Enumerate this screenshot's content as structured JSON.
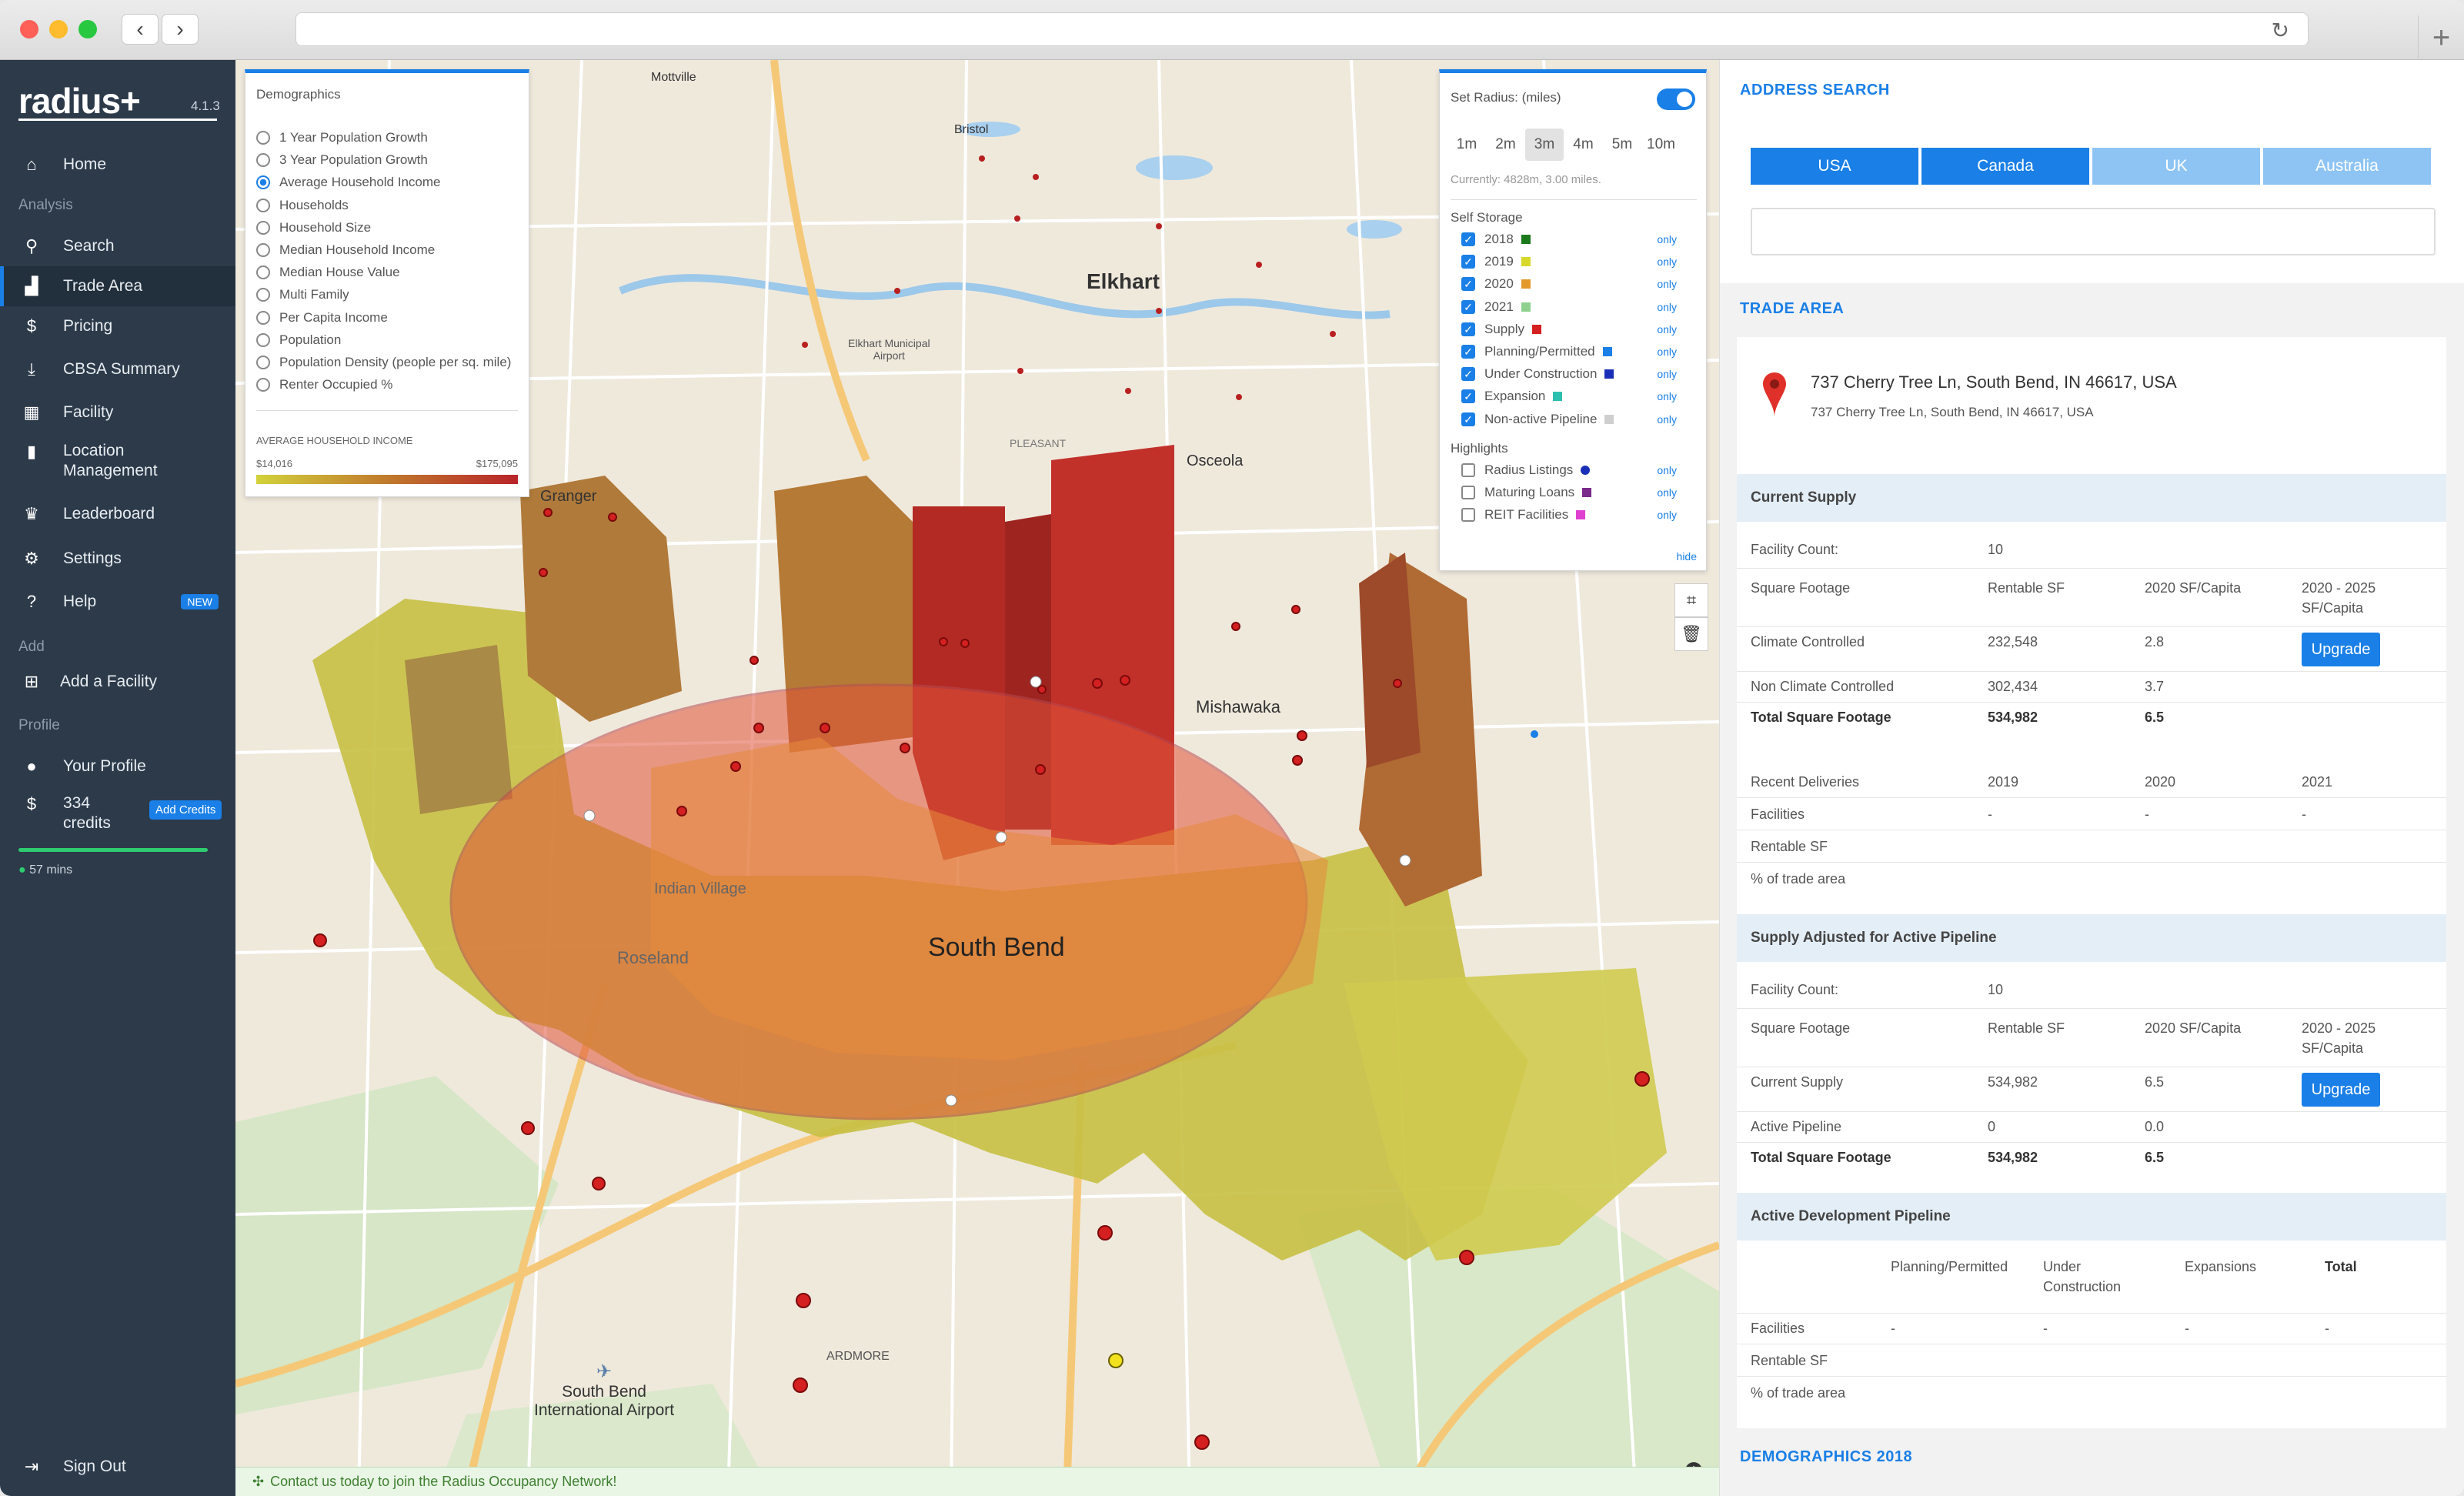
{
  "app": {
    "name": "radius+",
    "version": "4.1.3"
  },
  "sidebar": {
    "sections": {
      "analysis": "Analysis",
      "add": "Add",
      "profile": "Profile"
    },
    "items": [
      {
        "id": "home",
        "label": "Home",
        "icon": "home-icon"
      },
      {
        "id": "search",
        "label": "Search",
        "icon": "search-icon"
      },
      {
        "id": "trade-area",
        "label": "Trade Area",
        "icon": "area-chart-icon",
        "active": true
      },
      {
        "id": "pricing",
        "label": "Pricing",
        "icon": "dollar-icon"
      },
      {
        "id": "cbsa",
        "label": "CBSA Summary",
        "icon": "download-icon"
      },
      {
        "id": "facility",
        "label": "Facility",
        "icon": "building-icon"
      },
      {
        "id": "location",
        "label": "Location",
        "label2": "Management",
        "icon": "bookmark-icon"
      },
      {
        "id": "leaderboard",
        "label": "Leaderboard",
        "icon": "trophy-icon"
      },
      {
        "id": "settings",
        "label": "Settings",
        "icon": "gear-icon"
      },
      {
        "id": "help",
        "label": "Help",
        "badge": "NEW",
        "icon": "help-icon"
      },
      {
        "id": "add-facility",
        "label": "Add a Facility",
        "icon": "plus-square-icon"
      },
      {
        "id": "profile",
        "label": "Your Profile",
        "icon": "user-icon"
      },
      {
        "id": "credits",
        "label": "334",
        "label2": "credits",
        "button": "Add Credits",
        "icon": "coin-icon"
      },
      {
        "id": "signout",
        "label": "Sign Out",
        "icon": "signout-icon"
      }
    ],
    "session": "57 mins"
  },
  "demographics": {
    "title": "Demographics",
    "options": [
      "1 Year Population Growth",
      "3 Year Population Growth",
      "Average Household Income",
      "Households",
      "Household Size",
      "Median Household Income",
      "Median House Value",
      "Multi Family",
      "Per Capita Income",
      "Population",
      "Population Density (people per sq. mile)",
      "Renter Occupied %"
    ],
    "selected_index": 2,
    "legend_title": "AVERAGE HOUSEHOLD INCOME",
    "legend_min": "$14,016",
    "legend_max": "$175,095"
  },
  "radius": {
    "title": "Set Radius: (miles)",
    "options": [
      "1m",
      "2m",
      "3m",
      "4m",
      "5m",
      "10m"
    ],
    "selected": "3m",
    "current": "Currently: 4828m, 3.00 miles.",
    "self_storage_title": "Self Storage",
    "self_storage": [
      {
        "label": "2018",
        "color": "#1c7a1c",
        "checked": true
      },
      {
        "label": "2019",
        "color": "#d8d82a",
        "checked": true
      },
      {
        "label": "2020",
        "color": "#e39a2a",
        "checked": true
      },
      {
        "label": "2021",
        "color": "#8fd08f",
        "checked": true
      },
      {
        "label": "Supply",
        "color": "#d42020",
        "checked": true
      },
      {
        "label": "Planning/Permitted",
        "color": "#1a7fe6",
        "checked": true
      },
      {
        "label": "Under Construction",
        "color": "#1a2fb8",
        "checked": true
      },
      {
        "label": "Expansion",
        "color": "#2bbfb0",
        "checked": true
      },
      {
        "label": "Non-active Pipeline",
        "color": "#cfcfcf",
        "checked": true
      }
    ],
    "highlights_title": "Highlights",
    "highlights": [
      {
        "label": "Radius Listings",
        "color": "#1a2fb8"
      },
      {
        "label": "Maturing Loans",
        "color": "#7a2a8a"
      },
      {
        "label": "REIT Facilities",
        "color": "#e040d0"
      }
    ],
    "only_label": "only",
    "hide_label": "hide"
  },
  "map": {
    "labels": {
      "elkhart": "Elkhart",
      "south_bend": "South Bend",
      "mishawaka": "Mishawaka",
      "osceola": "Osceola",
      "granger": "Granger",
      "bristol": "Bristol",
      "mottville": "Mottville",
      "roseland": "Roseland",
      "indian_village": "Indian Village",
      "airport": "South Bend",
      "airport2": "International Airport",
      "ardmore": "ARDMORE",
      "pleasant_valley": "PLEASANT",
      "elkhart_airport": "Elkhart Municipal",
      "elkhart_airport2": "Airport"
    },
    "footer": "Contact us today to join the Radius Occupancy Network!"
  },
  "address_search": {
    "title": "ADDRESS SEARCH",
    "countries": [
      {
        "label": "USA",
        "color": "#1a7fe6"
      },
      {
        "label": "Canada",
        "color": "#1a7fe6"
      },
      {
        "label": "UK",
        "color": "#8ec4f4"
      },
      {
        "label": "Australia",
        "color": "#8ec4f4"
      }
    ],
    "input_placeholder": ""
  },
  "trade_area": {
    "title": "TRADE AREA",
    "address_title": "737 Cherry Tree Ln, South Bend, IN 46617, USA",
    "address_sub": "737 Cherry Tree Ln, South Bend, IN 46617, USA",
    "current_supply": {
      "title": "Current Supply",
      "facility_count_label": "Facility Count:",
      "facility_count": "10",
      "sq_label": "Square Footage",
      "col_rentable": "Rentable SF",
      "col_capita": "2020 SF/Capita",
      "col_future": "2020 - 2025",
      "col_future2": "SF/Capita",
      "rows": [
        {
          "label": "Climate Controlled",
          "rentable": "232,548",
          "capita": "2.8",
          "upgrade": true
        },
        {
          "label": "Non Climate Controlled",
          "rentable": "302,434",
          "capita": "3.7"
        },
        {
          "label": "Total Square Footage",
          "rentable": "534,982",
          "capita": "6.5",
          "bold": true
        }
      ],
      "upgrade_label": "Upgrade",
      "deliveries_label": "Recent Deliveries",
      "years": [
        "2019",
        "2020",
        "2021"
      ],
      "facilities_label": "Facilities",
      "facilities_vals": [
        "-",
        "-",
        "-"
      ],
      "rentable_label": "Rentable SF",
      "pct_label": "% of trade area"
    },
    "adjusted": {
      "title": "Supply Adjusted for Active Pipeline",
      "facility_count_label": "Facility Count:",
      "facility_count": "10",
      "rows": [
        {
          "label": "Current Supply",
          "rentable": "534,982",
          "capita": "6.5",
          "upgrade": true
        },
        {
          "label": "Active Pipeline",
          "rentable": "0",
          "capita": "0.0"
        },
        {
          "label": "Total Square Footage",
          "rentable": "534,982",
          "capita": "6.5",
          "bold": true
        }
      ]
    },
    "pipeline": {
      "title": "Active Development Pipeline",
      "cols": [
        "Planning/Permitted",
        "Under",
        "Construction",
        "Expansions",
        "Total"
      ],
      "facilities_label": "Facilities",
      "facilities_vals": [
        "-",
        "-",
        "-",
        "-"
      ],
      "rentable_label": "Rentable SF",
      "pct_label": "% of trade area"
    },
    "demographics_title": "DEMOGRAPHICS 2018"
  }
}
